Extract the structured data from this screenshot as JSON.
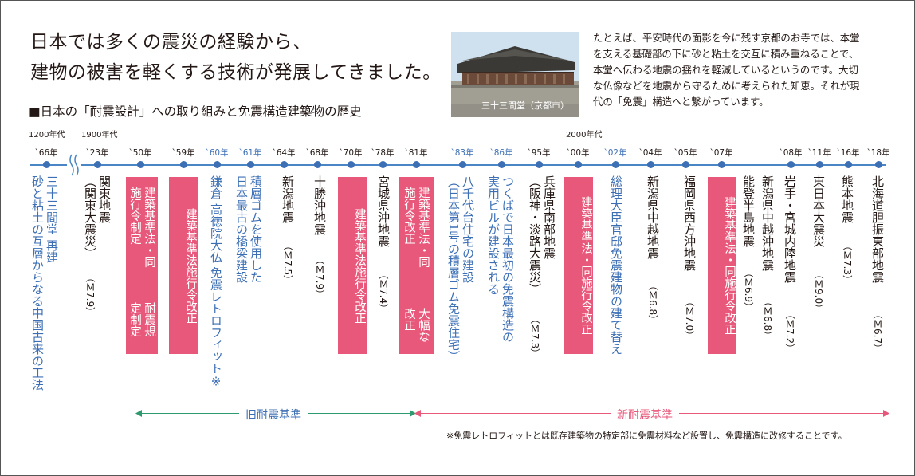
{
  "heading": {
    "line1": "日本では多くの震災の経験から、",
    "line2": "建物の被害を軽くする技術が発展してきました。",
    "subtitle": "■日本の「耐震設計」への取り組みと免震構造建築物の歴史"
  },
  "photo": {
    "caption": "三十三間堂（京都市）"
  },
  "intro": [
    "たとえば、平安時代の面影を今に残す京都のお寺では、本堂",
    "を支える基礎部の下に砂と粘土を交互に積み重ねることで、",
    "本堂へ伝わる地震の揺れを軽減しているというのです。大切",
    "な仏像などを地震から守るために考えられた知恵。それが現",
    "代の「免震」構造へと繋がっています。"
  ],
  "eras": [
    "1200年代",
    "1900年代",
    "2000年代"
  ],
  "years": [
    "`66年",
    "`23年",
    "`50年",
    "`59年",
    "`60年",
    "`61年",
    "`64年",
    "`68年",
    "`70年",
    "`78年",
    "`81年",
    "`83年",
    "`86年",
    "`95年",
    "`00年",
    "`02年",
    "`04年",
    "`05年",
    "`07年",
    "`08年",
    "`11年",
    "`16年",
    "`18年"
  ],
  "events": {
    "e66": "三十三間堂 再建",
    "e66b": "砂と粘土の互層からなる中国古来の工法",
    "e23a": "関東地震",
    "e23b": "（関東大震災）",
    "e23c": "（Ｍ7.9）",
    "e50a": "建築基準法・同施行令制定",
    "e50b": "耐震規定制定",
    "e59": "建築基準法施行令改正",
    "e60": "鎌倉 高徳院大仏 免震レトロフィット※",
    "e61a": "積層ゴムを使用した",
    "e61b": "日本最古の橋梁建設",
    "e64a": "新潟地震",
    "e64b": "（Ｍ7.5）",
    "e68a": "十勝沖地震",
    "e68b": "（Ｍ7.9）",
    "e70": "建築基準法施行令改正",
    "e78a": "宮城県沖地震",
    "e78b": "（Ｍ7.4）",
    "e81a": "建築基準法・同施行令改正",
    "e81b": "大幅な改正",
    "e83a": "八千代台住宅の建設",
    "e83b": "（日本第1号の積層ゴム免震住宅）",
    "e86a": "つくばで日本最初の免震構造の",
    "e86b": "実用ビルが建設される",
    "e95a": "兵庫県南部地震",
    "e95b": "（阪神・淡路大震災）",
    "e95c": "（Ｍ7.3）",
    "e00": "建築基準法・同施行令改正",
    "e02": "総理大臣官邸免震建物の建て替え",
    "e04a": "新潟県中越地震",
    "e04b": "（Ｍ6.8）",
    "e05a": "福岡県西方沖地震",
    "e05b": "（Ｍ7.0）",
    "e07": "建築基準法・同施行令改正",
    "e07b1": "能登半島地震",
    "e07b2": "（Ｍ6.9）",
    "e07c1": "新潟県中越沖地震",
    "e07c2": "（Ｍ6.8）",
    "e08a": "岩手・宮城内陸地震",
    "e08b": "（Ｍ7.2）",
    "e11a": "東日本大震災",
    "e11b": "（Ｍ9.0）",
    "e16a": "熊本地震",
    "e16b": "（Ｍ7.3）",
    "e18a": "北海道胆振東部地震",
    "e18b": "（Ｍ6.7）"
  },
  "standards": {
    "old": "旧耐震基準",
    "new": "新耐震基準"
  },
  "note": "※免震レトロフィットとは既存建築物の特定部に免震材料など設置し、免震構造に改修することです。",
  "colors": {
    "blue": "#3d6fb5",
    "pink": "#e8587a",
    "green": "#2e9a6f",
    "text": "#231815"
  }
}
